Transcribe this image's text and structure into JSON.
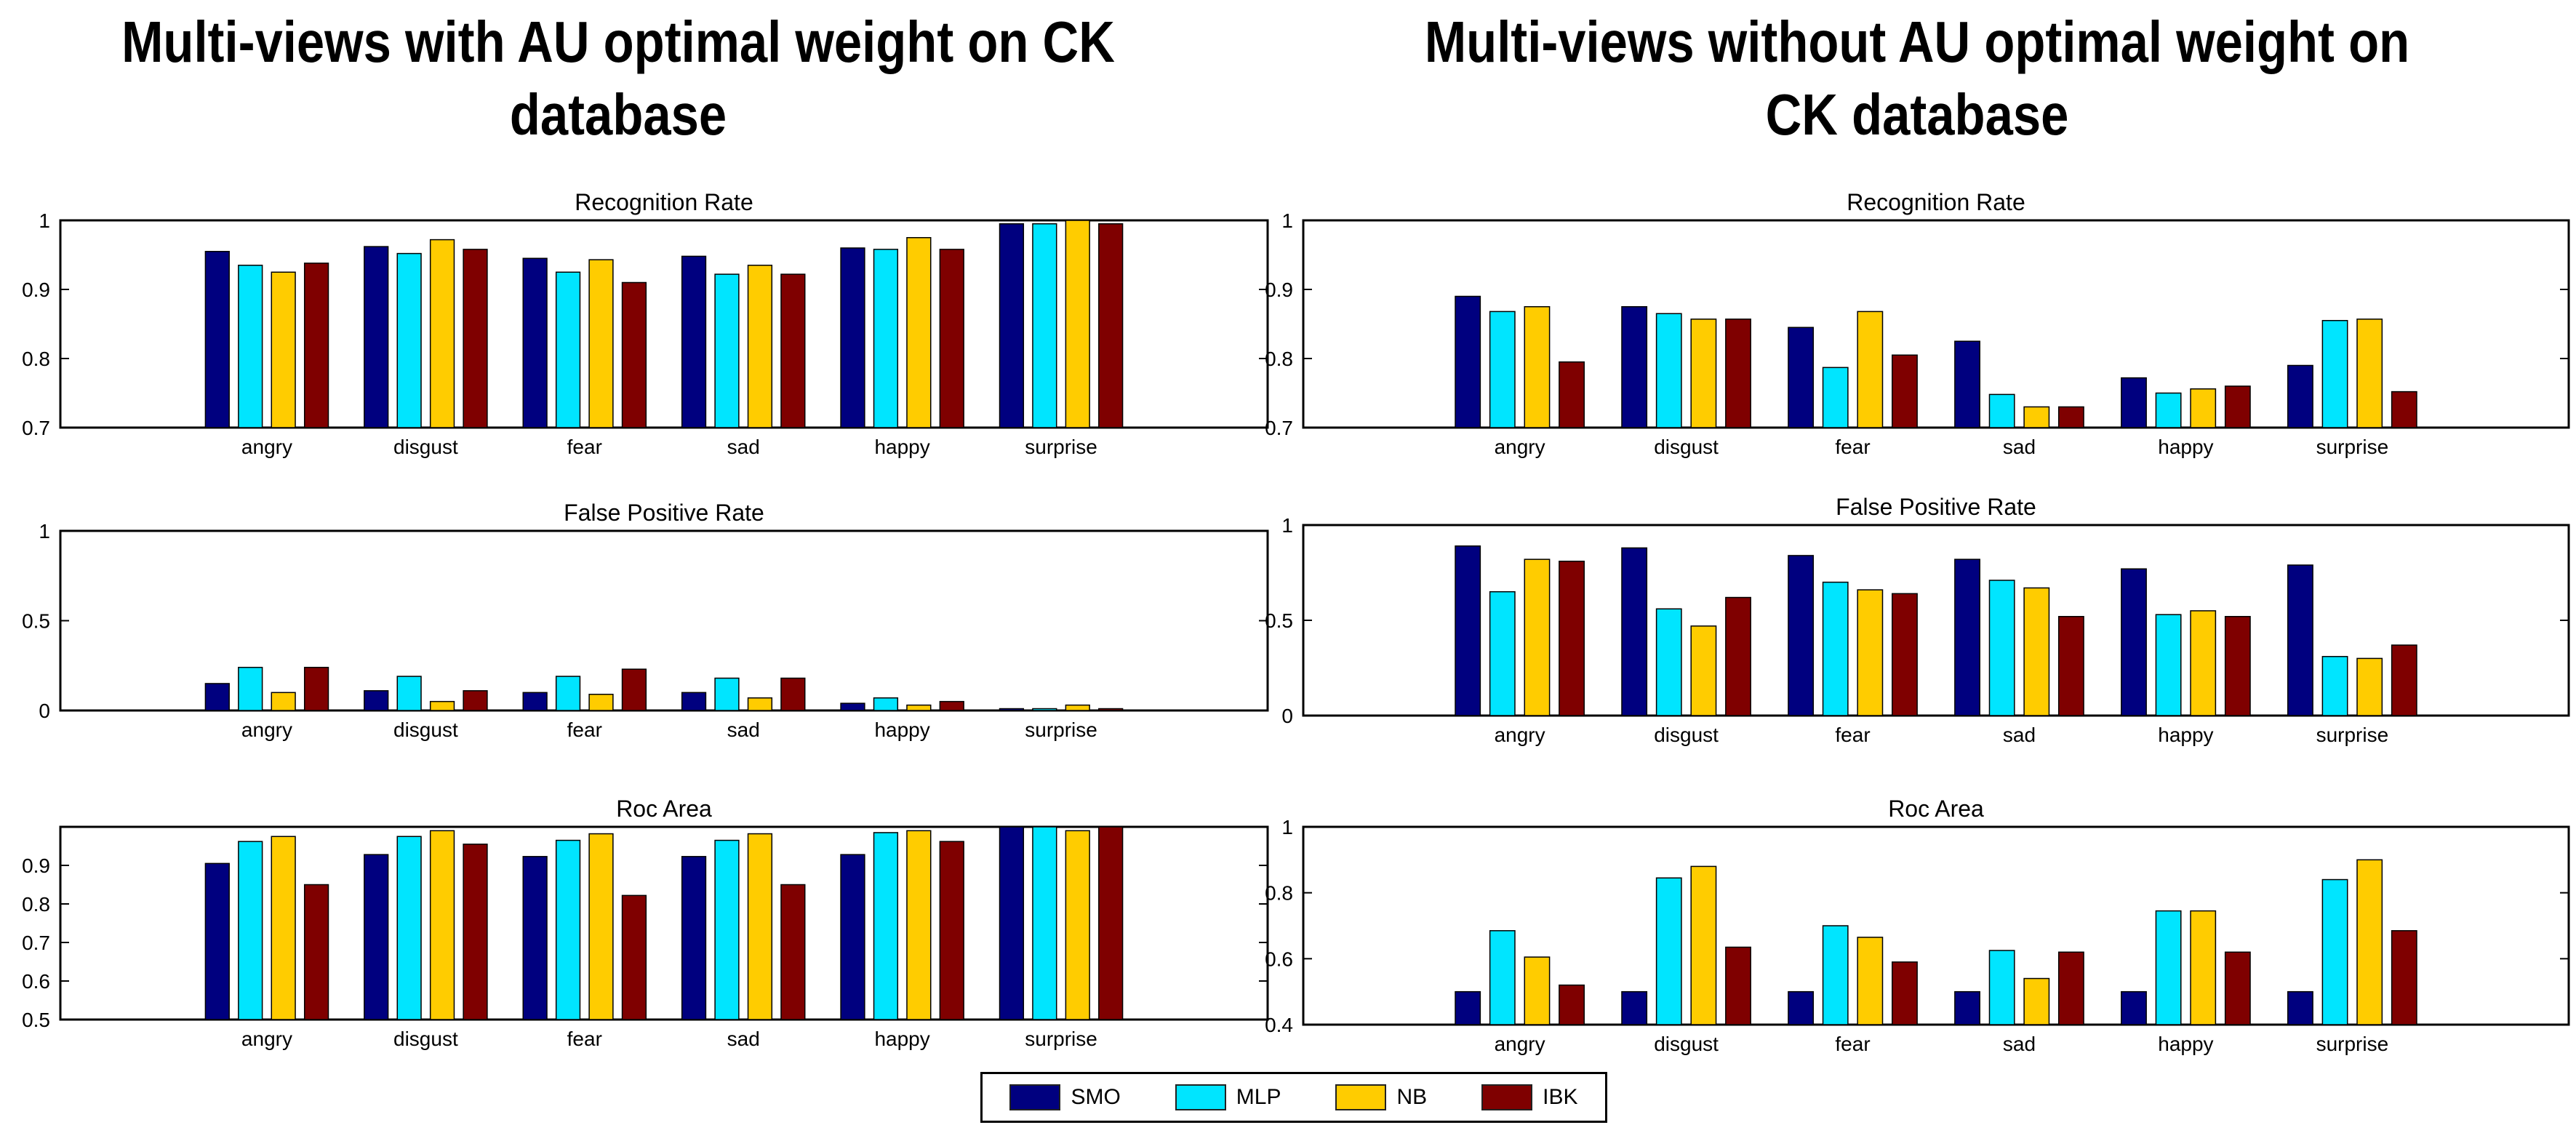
{
  "titles": {
    "left": "Multi-views with AU optimal weight on CK database",
    "right": "Multi-views without AU optimal weight on CK database"
  },
  "series_names": [
    "SMO",
    "MLP",
    "NB",
    "IBK"
  ],
  "colors": {
    "SMO": "#00007f",
    "MLP": "#00e5ff",
    "NB": "#ffcc00",
    "IBK": "#7f0000"
  },
  "chart_data": [
    {
      "type": "bar",
      "panel": "left",
      "title": "Recognition Rate",
      "categories": [
        "angry",
        "disgust",
        "fear",
        "sad",
        "happy",
        "surprise"
      ],
      "ylim": [
        0.7,
        1.0
      ],
      "yticks": [
        0.7,
        0.8,
        0.9,
        1
      ],
      "ytick_labels": [
        "0.7",
        "0.8",
        "0.9",
        "1"
      ],
      "series": [
        {
          "name": "SMO",
          "values": [
            0.955,
            0.962,
            0.945,
            0.948,
            0.96,
            0.995
          ]
        },
        {
          "name": "MLP",
          "values": [
            0.935,
            0.952,
            0.925,
            0.922,
            0.958,
            0.995
          ]
        },
        {
          "name": "NB",
          "values": [
            0.925,
            0.972,
            0.943,
            0.935,
            0.975,
            1.0
          ]
        },
        {
          "name": "IBK",
          "values": [
            0.938,
            0.958,
            0.91,
            0.922,
            0.958,
            0.995
          ]
        }
      ]
    },
    {
      "type": "bar",
      "panel": "left",
      "title": "False Positive Rate",
      "categories": [
        "angry",
        "disgust",
        "fear",
        "sad",
        "happy",
        "surprise"
      ],
      "ylim": [
        0,
        1
      ],
      "yticks": [
        0,
        0.5,
        1
      ],
      "ytick_labels": [
        "0",
        "0.5",
        "1"
      ],
      "series": [
        {
          "name": "SMO",
          "values": [
            0.15,
            0.11,
            0.1,
            0.1,
            0.04,
            0.01
          ]
        },
        {
          "name": "MLP",
          "values": [
            0.24,
            0.19,
            0.19,
            0.18,
            0.07,
            0.01
          ]
        },
        {
          "name": "NB",
          "values": [
            0.1,
            0.05,
            0.09,
            0.07,
            0.03,
            0.03
          ]
        },
        {
          "name": "IBK",
          "values": [
            0.24,
            0.11,
            0.23,
            0.18,
            0.05,
            0.01
          ]
        }
      ]
    },
    {
      "type": "bar",
      "panel": "left",
      "title": "Roc Area",
      "categories": [
        "angry",
        "disgust",
        "fear",
        "sad",
        "happy",
        "surprise"
      ],
      "ylim": [
        0.5,
        1.0
      ],
      "yticks": [
        0.5,
        0.6,
        0.7,
        0.8,
        0.9
      ],
      "ytick_labels": [
        "0.5",
        "0.6",
        "0.7",
        "0.8",
        "0.9"
      ],
      "series": [
        {
          "name": "SMO",
          "values": [
            0.905,
            0.928,
            0.923,
            0.923,
            0.928,
            1.0
          ]
        },
        {
          "name": "MLP",
          "values": [
            0.962,
            0.975,
            0.965,
            0.965,
            0.985,
            1.0
          ]
        },
        {
          "name": "NB",
          "values": [
            0.975,
            0.99,
            0.982,
            0.982,
            0.99,
            0.99
          ]
        },
        {
          "name": "IBK",
          "values": [
            0.85,
            0.955,
            0.822,
            0.85,
            0.962,
            1.0
          ]
        }
      ]
    },
    {
      "type": "bar",
      "panel": "right",
      "title": "Recognition Rate",
      "categories": [
        "angry",
        "disgust",
        "fear",
        "sad",
        "happy",
        "surprise"
      ],
      "ylim": [
        0.7,
        1.0
      ],
      "yticks": [
        0.7,
        0.8,
        0.9,
        1
      ],
      "ytick_labels": [
        "0.7",
        "0.8",
        "0.9",
        "1"
      ],
      "series": [
        {
          "name": "SMO",
          "values": [
            0.89,
            0.875,
            0.845,
            0.825,
            0.772,
            0.79
          ]
        },
        {
          "name": "MLP",
          "values": [
            0.868,
            0.865,
            0.787,
            0.748,
            0.75,
            0.855
          ]
        },
        {
          "name": "NB",
          "values": [
            0.875,
            0.857,
            0.868,
            0.73,
            0.756,
            0.857
          ]
        },
        {
          "name": "IBK",
          "values": [
            0.795,
            0.857,
            0.805,
            0.73,
            0.76,
            0.752
          ]
        }
      ]
    },
    {
      "type": "bar",
      "panel": "right",
      "title": "False Positive Rate",
      "categories": [
        "angry",
        "disgust",
        "fear",
        "sad",
        "happy",
        "surprise"
      ],
      "ylim": [
        0,
        1
      ],
      "yticks": [
        0,
        0.5,
        1
      ],
      "ytick_labels": [
        "0",
        "0.5",
        "1"
      ],
      "series": [
        {
          "name": "SMO",
          "values": [
            0.89,
            0.88,
            0.84,
            0.82,
            0.77,
            0.79
          ]
        },
        {
          "name": "MLP",
          "values": [
            0.65,
            0.56,
            0.7,
            0.71,
            0.53,
            0.31
          ]
        },
        {
          "name": "NB",
          "values": [
            0.82,
            0.47,
            0.66,
            0.67,
            0.55,
            0.3
          ]
        },
        {
          "name": "IBK",
          "values": [
            0.81,
            0.62,
            0.64,
            0.52,
            0.52,
            0.37
          ]
        }
      ]
    },
    {
      "type": "bar",
      "panel": "right",
      "title": "Roc Area",
      "categories": [
        "angry",
        "disgust",
        "fear",
        "sad",
        "happy",
        "surprise"
      ],
      "ylim": [
        0.4,
        1.0
      ],
      "yticks": [
        0.4,
        0.6,
        0.8,
        1
      ],
      "ytick_labels": [
        "0.4",
        "0.6",
        "0.8",
        "1"
      ],
      "series": [
        {
          "name": "SMO",
          "values": [
            0.5,
            0.5,
            0.5,
            0.5,
            0.5,
            0.5
          ]
        },
        {
          "name": "MLP",
          "values": [
            0.685,
            0.845,
            0.7,
            0.625,
            0.745,
            0.84
          ]
        },
        {
          "name": "NB",
          "values": [
            0.605,
            0.88,
            0.665,
            0.54,
            0.745,
            0.9
          ]
        },
        {
          "name": "IBK",
          "values": [
            0.52,
            0.635,
            0.59,
            0.62,
            0.62,
            0.685
          ]
        }
      ]
    }
  ]
}
